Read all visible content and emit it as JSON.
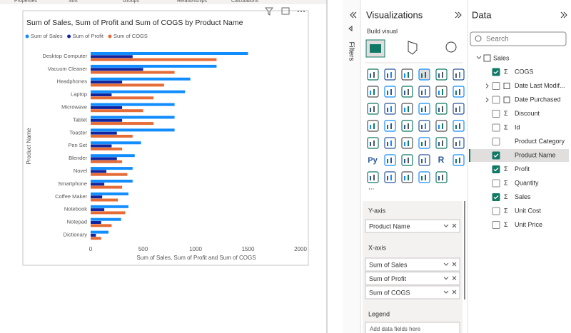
{
  "chart_data": {
    "type": "bar",
    "orientation": "horizontal",
    "title": "Sum of Sales, Sum of Profit and Sum of COGS by Product Name",
    "x_label": "Sum of Sales, Sum of Profit and Sum of COGS",
    "y_label": "Product Name",
    "categories": [
      "Desktop Computer",
      "Vacuum Cleaner",
      "Headphones",
      "Laptop",
      "Microwave",
      "Tablet",
      "Toaster",
      "Pen Set",
      "Blender",
      "Novel",
      "Smartphone",
      "Coffee Maker",
      "Notebook",
      "Notepad",
      "Dictionary"
    ],
    "series": [
      {
        "name": "Sum of Sales",
        "color": "#118dff",
        "values": [
          1500,
          1200,
          950,
          900,
          800,
          800,
          800,
          480,
          420,
          400,
          400,
          360,
          360,
          290,
          170
        ]
      },
      {
        "name": "Sum of Profit",
        "color": "#12239e",
        "values": [
          400,
          500,
          300,
          200,
          300,
          300,
          250,
          200,
          250,
          150,
          130,
          110,
          130,
          100,
          50
        ]
      },
      {
        "name": "Sum of COGS",
        "color": "#e66c37",
        "values": [
          1200,
          800,
          700,
          600,
          500,
          600,
          400,
          300,
          300,
          350,
          300,
          260,
          330,
          200,
          100
        ]
      }
    ],
    "xlim": [
      0,
      2000
    ],
    "xticks": [
      0,
      500,
      1000,
      1500,
      2000
    ],
    "grid": false,
    "legend": "top-left"
  },
  "ribbon": {
    "tabs": [
      "Properties",
      "Sort",
      "Groups",
      "Relationships",
      "Calculations"
    ]
  },
  "filters": {
    "title": "Filters"
  },
  "visualizations": {
    "title": "Visualizations",
    "subtitle": "Build visual",
    "icon_texts": [
      "R",
      "Py"
    ],
    "more": "...",
    "y_axis": "Y-axis",
    "y_well": "Product Name",
    "x_axis": "X-axis",
    "legend": "Legend",
    "legend_placeholder": "Add data fields here"
  },
  "data_pane": {
    "title": "Data",
    "search": "Search",
    "table": "Sales",
    "fields": [
      {
        "name": "COGS",
        "icon": "Σ",
        "checked": true
      },
      {
        "name": "Date Last Modif...",
        "icon": "",
        "checked": false,
        "expand": true
      },
      {
        "name": "Date Purchased",
        "icon": "",
        "checked": false,
        "expand": true
      },
      {
        "name": "Discount",
        "icon": "Σ",
        "checked": false
      },
      {
        "name": "Id",
        "icon": "Σ",
        "checked": false
      },
      {
        "name": "Product Category",
        "icon": "",
        "checked": false
      },
      {
        "name": "Product Name",
        "icon": "",
        "checked": true,
        "selected": true
      },
      {
        "name": "Profit",
        "icon": "Σ",
        "checked": true
      },
      {
        "name": "Quantity",
        "icon": "Σ",
        "checked": false
      },
      {
        "name": "Sales",
        "icon": "Σ",
        "checked": true
      },
      {
        "name": "Unit Cost",
        "icon": "Σ",
        "checked": false
      },
      {
        "name": "Unit Price",
        "icon": "Σ",
        "checked": false
      }
    ]
  }
}
